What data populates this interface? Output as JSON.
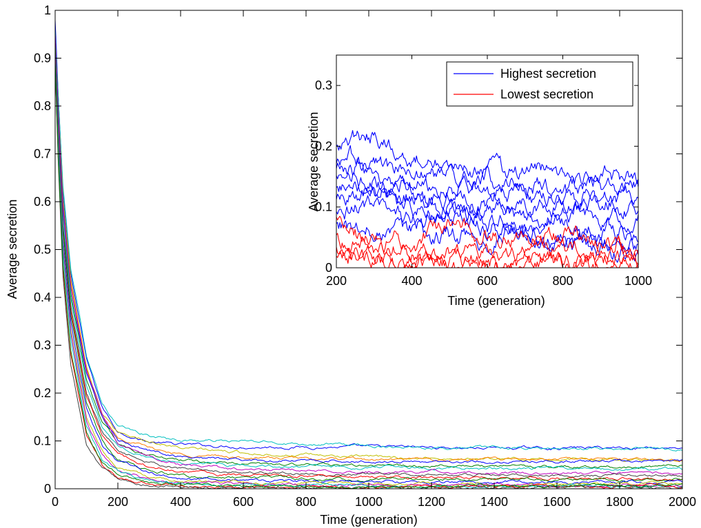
{
  "colors": {
    "palette": [
      "#0000ff",
      "#008000",
      "#ff0000",
      "#00bfbf",
      "#bf00bf",
      "#bfbf00",
      "#404040"
    ],
    "highest": "#0000ff",
    "lowest": "#ff0000"
  },
  "chart_data": [
    {
      "type": "line",
      "role": "main",
      "xlabel": "Time (generation)",
      "ylabel": "Average secretion",
      "xlim": [
        0,
        2000
      ],
      "ylim": [
        0,
        1
      ],
      "xticks": [
        "0",
        "200",
        "400",
        "600",
        "800",
        "1000",
        "1200",
        "1400",
        "1600",
        "1800",
        "2000"
      ],
      "yticks": [
        "0",
        "0.1",
        "0.2",
        "0.3",
        "0.4",
        "0.5",
        "0.6",
        "0.7",
        "0.8",
        "0.9",
        "1"
      ],
      "grid": false,
      "legend": "none",
      "x": [
        0,
        10,
        25,
        50,
        100,
        150,
        200,
        300,
        400,
        600,
        1000,
        1500,
        2000
      ],
      "series": [
        {
          "color": "#0000ff",
          "values": [
            0.98,
            0.82,
            0.62,
            0.45,
            0.27,
            0.17,
            0.12,
            0.098,
            0.092,
            0.088,
            0.087,
            0.085,
            0.087
          ]
        },
        {
          "color": "#00bfbf",
          "values": [
            0.96,
            0.82,
            0.63,
            0.46,
            0.28,
            0.18,
            0.13,
            0.11,
            0.102,
            0.099,
            0.09,
            0.084,
            0.083
          ]
        },
        {
          "color": "#bfbf00",
          "values": [
            0.95,
            0.8,
            0.61,
            0.44,
            0.26,
            0.16,
            0.115,
            0.1,
            0.085,
            0.075,
            0.066,
            0.062,
            0.061
          ]
        },
        {
          "color": "#ff8000",
          "values": [
            0.94,
            0.79,
            0.6,
            0.43,
            0.25,
            0.15,
            0.11,
            0.085,
            0.072,
            0.065,
            0.06,
            0.061,
            0.062
          ]
        },
        {
          "color": "#0000ff",
          "values": [
            0.95,
            0.79,
            0.59,
            0.42,
            0.24,
            0.15,
            0.1,
            0.08,
            0.068,
            0.06,
            0.057,
            0.057,
            0.058
          ]
        },
        {
          "color": "#008000",
          "values": [
            0.94,
            0.78,
            0.58,
            0.41,
            0.23,
            0.14,
            0.095,
            0.07,
            0.06,
            0.052,
            0.048,
            0.046,
            0.045
          ]
        },
        {
          "color": "#00bfbf",
          "values": [
            0.93,
            0.77,
            0.57,
            0.4,
            0.22,
            0.13,
            0.09,
            0.065,
            0.055,
            0.048,
            0.045,
            0.042,
            0.04
          ]
        },
        {
          "color": "#bf00bf",
          "values": [
            0.95,
            0.78,
            0.58,
            0.42,
            0.25,
            0.16,
            0.1,
            0.07,
            0.05,
            0.04,
            0.036,
            0.034,
            0.032
          ]
        },
        {
          "color": "#404040",
          "values": [
            0.92,
            0.76,
            0.55,
            0.38,
            0.2,
            0.12,
            0.08,
            0.055,
            0.042,
            0.035,
            0.03,
            0.028,
            0.027
          ]
        },
        {
          "color": "#ff0000",
          "values": [
            0.92,
            0.75,
            0.54,
            0.37,
            0.19,
            0.11,
            0.07,
            0.045,
            0.035,
            0.028,
            0.024,
            0.022,
            0.02
          ]
        },
        {
          "color": "#008000",
          "values": [
            0.93,
            0.75,
            0.54,
            0.36,
            0.18,
            0.1,
            0.06,
            0.038,
            0.028,
            0.022,
            0.02,
            0.018,
            0.018
          ]
        },
        {
          "color": "#0000ff",
          "values": [
            0.91,
            0.74,
            0.52,
            0.35,
            0.17,
            0.09,
            0.055,
            0.032,
            0.022,
            0.017,
            0.015,
            0.014,
            0.013
          ]
        },
        {
          "color": "#bfbf00",
          "values": [
            0.9,
            0.73,
            0.51,
            0.33,
            0.15,
            0.08,
            0.045,
            0.025,
            0.017,
            0.013,
            0.011,
            0.01,
            0.01
          ]
        },
        {
          "color": "#bf00bf",
          "values": [
            0.9,
            0.72,
            0.5,
            0.32,
            0.14,
            0.07,
            0.04,
            0.02,
            0.012,
            0.009,
            0.008,
            0.007,
            0.007
          ]
        },
        {
          "color": "#00bfbf",
          "values": [
            0.89,
            0.71,
            0.49,
            0.31,
            0.13,
            0.06,
            0.035,
            0.016,
            0.01,
            0.007,
            0.006,
            0.005,
            0.005
          ]
        },
        {
          "color": "#ff0000",
          "values": [
            0.88,
            0.69,
            0.46,
            0.28,
            0.11,
            0.05,
            0.025,
            0.011,
            0.007,
            0.005,
            0.004,
            0.004,
            0.004
          ]
        },
        {
          "color": "#404040",
          "values": [
            0.88,
            0.68,
            0.44,
            0.26,
            0.09,
            0.04,
            0.018,
            0.008,
            0.005,
            0.004,
            0.003,
            0.003,
            0.003
          ]
        },
        {
          "color": "#008000",
          "values": [
            0.89,
            0.7,
            0.47,
            0.29,
            0.12,
            0.055,
            0.03,
            0.014,
            0.009,
            0.006,
            0.005,
            0.005,
            0.005
          ]
        }
      ]
    },
    {
      "type": "line",
      "role": "inset",
      "xlabel": "Time (generation)",
      "ylabel": "Average secretion",
      "xlim": [
        200,
        1000
      ],
      "ylim": [
        0,
        0.35
      ],
      "xticks": [
        "200",
        "400",
        "600",
        "800",
        "1000"
      ],
      "yticks": [
        "0",
        "0.1",
        "0.2",
        "0.3"
      ],
      "grid": false,
      "legend": "top-right",
      "x": [
        200,
        250,
        300,
        350,
        400,
        450,
        500,
        550,
        600,
        650,
        700,
        750,
        800,
        850,
        900,
        950,
        1000
      ],
      "series": [
        {
          "name": "Highest secretion",
          "color": "#0000ff",
          "values": [
            0.2,
            0.21,
            0.22,
            0.21,
            0.19,
            0.18,
            0.17,
            0.16,
            0.16,
            0.155,
            0.15,
            0.155,
            0.15,
            0.145,
            0.15,
            0.145,
            0.15
          ]
        },
        {
          "color": "#0000ff",
          "values": [
            0.17,
            0.18,
            0.17,
            0.16,
            0.17,
            0.16,
            0.15,
            0.14,
            0.145,
            0.14,
            0.135,
            0.14,
            0.13,
            0.135,
            0.13,
            0.135,
            0.13
          ]
        },
        {
          "color": "#0000ff",
          "values": [
            0.15,
            0.16,
            0.155,
            0.15,
            0.14,
            0.13,
            0.125,
            0.13,
            0.12,
            0.125,
            0.12,
            0.115,
            0.12,
            0.115,
            0.12,
            0.115,
            0.12
          ]
        },
        {
          "color": "#0000ff",
          "values": [
            0.13,
            0.14,
            0.135,
            0.13,
            0.12,
            0.11,
            0.115,
            0.11,
            0.105,
            0.11,
            0.1,
            0.105,
            0.1,
            0.105,
            0.1,
            0.105,
            0.1
          ]
        },
        {
          "color": "#0000ff",
          "values": [
            0.11,
            0.12,
            0.115,
            0.11,
            0.1,
            0.095,
            0.1,
            0.09,
            0.095,
            0.09,
            0.085,
            0.09,
            0.085,
            0.08,
            0.085,
            0.08,
            0.085
          ]
        },
        {
          "color": "#0000ff",
          "values": [
            0.09,
            0.1,
            0.095,
            0.09,
            0.085,
            0.08,
            0.075,
            0.08,
            0.07,
            0.075,
            0.07,
            0.065,
            0.07,
            0.065,
            0.06,
            0.065,
            0.06
          ]
        },
        {
          "color": "#0000ff",
          "values": [
            0.07,
            0.06,
            0.065,
            0.06,
            0.055,
            0.05,
            0.055,
            0.05,
            0.045,
            0.05,
            0.045,
            0.04,
            0.045,
            0.04,
            0.035,
            0.04,
            0.035
          ]
        },
        {
          "color": "#0000ff",
          "values": [
            0.16,
            0.15,
            0.14,
            0.13,
            0.12,
            0.1,
            0.09,
            0.08,
            0.07,
            0.06,
            0.05,
            0.045,
            0.04,
            0.035,
            0.03,
            0.025,
            0.02
          ]
        },
        {
          "name": "Lowest secretion",
          "color": "#ff0000",
          "values": [
            0.08,
            0.06,
            0.05,
            0.04,
            0.035,
            0.05,
            0.06,
            0.07,
            0.06,
            0.05,
            0.055,
            0.06,
            0.055,
            0.05,
            0.045,
            0.04,
            0.03
          ]
        },
        {
          "color": "#ff0000",
          "values": [
            0.05,
            0.04,
            0.035,
            0.03,
            0.025,
            0.02,
            0.018,
            0.02,
            0.025,
            0.02,
            0.018,
            0.02,
            0.022,
            0.02,
            0.018,
            0.02,
            0.018
          ]
        },
        {
          "color": "#ff0000",
          "values": [
            0.03,
            0.025,
            0.02,
            0.018,
            0.015,
            0.012,
            0.01,
            0.012,
            0.01,
            0.008,
            0.01,
            0.012,
            0.01,
            0.008,
            0.007,
            0.008,
            0.007
          ]
        },
        {
          "color": "#ff0000",
          "values": [
            0.015,
            0.012,
            0.01,
            0.008,
            0.006,
            0.005,
            0.005,
            0.004,
            0.004,
            0.003,
            0.003,
            0.004,
            0.003,
            0.003,
            0.003,
            0.003,
            0.003
          ]
        }
      ]
    }
  ]
}
